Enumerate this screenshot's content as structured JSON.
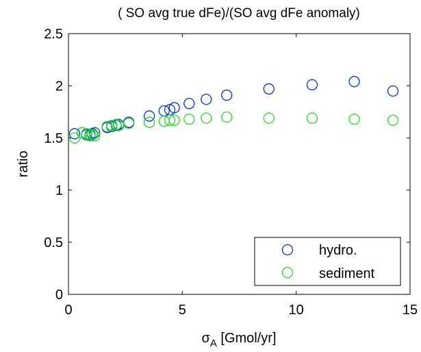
{
  "chart_data": {
    "type": "scatter",
    "title": "( SO avg true dFe)/(SO avg dFe anomaly)",
    "xlabel_main": "σ",
    "xlabel_sub": "A",
    "xlabel_rest": " [Gmol/yr]",
    "ylabel": "ratio",
    "xlim": [
      0,
      15
    ],
    "ylim": [
      0,
      2.5
    ],
    "xticks": [
      0,
      5,
      10,
      15
    ],
    "xtick_labels": [
      "0",
      "5",
      "10",
      "15"
    ],
    "yticks": [
      0,
      0.5,
      1,
      1.5,
      2,
      2.5
    ],
    "ytick_labels": [
      "0",
      "0.5",
      "1",
      "1.5",
      "2",
      "2.5"
    ],
    "marker": "open-circle",
    "grid": false,
    "legend_position": "bottom-right",
    "series": [
      {
        "name": "hydro.",
        "color": "#0033dd",
        "x": [
          0.27,
          0.6,
          0.8,
          0.95,
          1.05,
          1.15,
          1.7,
          1.9,
          2.1,
          2.2,
          2.65,
          3.55,
          4.2,
          4.45,
          4.65,
          5.3,
          6.05,
          6.95,
          8.8,
          10.7,
          12.55,
          14.25
        ],
        "y": [
          1.54,
          1.55,
          1.53,
          1.53,
          1.54,
          1.55,
          1.6,
          1.61,
          1.62,
          1.63,
          1.65,
          1.71,
          1.76,
          1.77,
          1.79,
          1.83,
          1.87,
          1.91,
          1.97,
          2.01,
          2.04,
          1.95
        ]
      },
      {
        "name": "sediment",
        "color": "#22dd22",
        "x": [
          0.27,
          0.6,
          0.8,
          0.95,
          1.05,
          1.15,
          1.7,
          1.9,
          2.1,
          2.2,
          2.65,
          3.55,
          4.2,
          4.45,
          4.65,
          5.3,
          6.05,
          6.95,
          8.8,
          10.7,
          12.55,
          14.25
        ],
        "y": [
          1.5,
          1.55,
          1.54,
          1.52,
          1.53,
          1.52,
          1.61,
          1.62,
          1.63,
          1.62,
          1.64,
          1.65,
          1.66,
          1.67,
          1.67,
          1.68,
          1.69,
          1.7,
          1.69,
          1.69,
          1.68,
          1.67
        ]
      }
    ]
  }
}
